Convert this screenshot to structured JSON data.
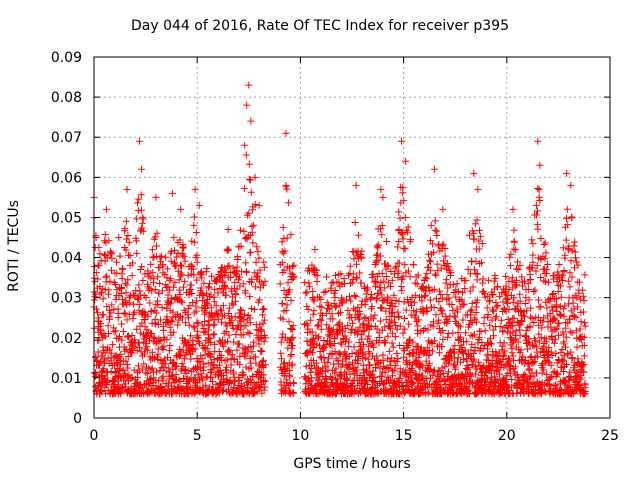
{
  "chart_data": {
    "type": "scatter",
    "title": "Day 044 of 2016, Rate Of TEC Index for receiver p395",
    "xlabel": "GPS time / hours",
    "ylabel": "ROTI / TECUs",
    "xlim": [
      0,
      25
    ],
    "ylim": [
      0,
      0.09
    ],
    "xticks": [
      0,
      5,
      10,
      15,
      20,
      25
    ],
    "yticks": [
      0,
      0.01,
      0.02,
      0.03,
      0.04,
      0.05,
      0.06,
      0.07,
      0.08,
      0.09
    ],
    "ytick_labels": [
      "0",
      "0.01",
      "0.02",
      "0.03",
      "0.04",
      "0.05",
      "0.06",
      "0.07",
      "0.08",
      "0.09"
    ],
    "grid": true,
    "marker": "+",
    "color": "#ff0000",
    "data_gaps_hours": [
      [
        8.3,
        9.0
      ],
      [
        9.7,
        10.2
      ]
    ],
    "series": [
      {
        "name": "ROTI",
        "x": [
          0.0,
          0.1,
          0.2,
          0.6,
          1.2,
          1.6,
          2.2,
          2.3,
          3.0,
          3.8,
          4.2,
          4.9,
          5.1,
          6.5,
          7.3,
          7.4,
          7.5,
          7.6,
          7.8,
          8.0,
          9.3,
          9.3,
          10.7,
          12.7,
          13.9,
          14.0,
          14.9,
          15.1,
          16.5,
          16.9,
          18.4,
          18.6,
          20.3,
          21.5,
          21.6,
          22.9,
          23.1,
          23.6
        ],
        "y": [
          0.055,
          0.045,
          0.038,
          0.052,
          0.045,
          0.057,
          0.069,
          0.062,
          0.055,
          0.056,
          0.052,
          0.057,
          0.053,
          0.047,
          0.068,
          0.078,
          0.083,
          0.074,
          0.06,
          0.053,
          0.071,
          0.058,
          0.042,
          0.058,
          0.057,
          0.055,
          0.069,
          0.064,
          0.062,
          0.052,
          0.061,
          0.057,
          0.052,
          0.069,
          0.063,
          0.061,
          0.058,
          0.024
        ]
      }
    ]
  }
}
